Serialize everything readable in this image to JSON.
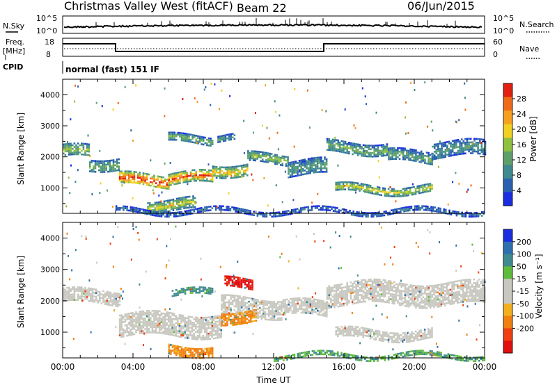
{
  "header": {
    "station": "Christmas Valley West (fitACF)",
    "beam": "Beam 22",
    "date": "06/Jun/2015"
  },
  "strip": {
    "nsky_label": "N.Sky",
    "nsearch_label": "N.Search",
    "noise_ticks": [
      "10^5",
      "10^0"
    ],
    "freq_label": "Freq.",
    "freq_unit": "[MHz]",
    "freq_ticks": [
      "18",
      "8"
    ],
    "nave_label": "Nave",
    "nave_ticks": [
      "60",
      "0"
    ],
    "cpid_label": "CPID",
    "cpid_text": "normal (fast) 151 IF"
  },
  "chart_data": [
    {
      "type": "heatmap",
      "title": "",
      "xlabel": "",
      "ylabel": "Slant Range [km]",
      "x_ticks": [
        "00:00",
        "04:00",
        "08:00",
        "12:00",
        "16:00",
        "20:00",
        "00:00"
      ],
      "xlim_hours": [
        0,
        24
      ],
      "y_ticks": [
        1000,
        2000,
        3000,
        4000
      ],
      "ylim_km": [
        180,
        4500
      ],
      "colorbar": {
        "label": "Power [dB]",
        "ticks": [
          "4",
          "8",
          "12",
          "16",
          "20",
          "24",
          "28"
        ],
        "colors": [
          "#1a2ee0",
          "#2b5fb0",
          "#3f8a8e",
          "#5ea06a",
          "#8fc040",
          "#f0d020",
          "#f5a020",
          "#ef6a18",
          "#e02010"
        ]
      },
      "bands": [
        {
          "t0": 0.0,
          "t1": 1.5,
          "y0": 1950,
          "y1": 2350,
          "v": 14
        },
        {
          "t0": 1.5,
          "t1": 3.2,
          "y0": 1600,
          "y1": 2000,
          "v": 12
        },
        {
          "t0": 3.2,
          "t1": 6.0,
          "y0": 1050,
          "y1": 1450,
          "v": 26
        },
        {
          "t0": 6.0,
          "t1": 8.5,
          "y0": 1150,
          "y1": 1500,
          "v": 24
        },
        {
          "t0": 8.5,
          "t1": 10.5,
          "y0": 1450,
          "y1": 1800,
          "v": 18
        },
        {
          "t0": 10.5,
          "t1": 12.8,
          "y0": 1800,
          "y1": 2100,
          "v": 14
        },
        {
          "t0": 12.8,
          "t1": 15.0,
          "y0": 1400,
          "y1": 1900,
          "v": 10
        },
        {
          "t0": 4.8,
          "t1": 7.5,
          "y0": 300,
          "y1": 650,
          "v": 16
        },
        {
          "t0": 6.0,
          "t1": 8.5,
          "y0": 2450,
          "y1": 2700,
          "v": 12
        },
        {
          "t0": 8.8,
          "t1": 9.8,
          "y0": 2500,
          "y1": 2700,
          "v": 10
        },
        {
          "t0": 15.0,
          "t1": 18.5,
          "y0": 2100,
          "y1": 2500,
          "v": 12
        },
        {
          "t0": 18.5,
          "t1": 21.0,
          "y0": 1800,
          "y1": 2200,
          "v": 11
        },
        {
          "t0": 21.0,
          "t1": 24.0,
          "y0": 2000,
          "y1": 2500,
          "v": 9
        },
        {
          "t0": 15.5,
          "t1": 21.0,
          "y0": 850,
          "y1": 1100,
          "v": 16
        },
        {
          "t0": 3.0,
          "t1": 24.0,
          "y0": 180,
          "y1": 330,
          "v": 6
        }
      ]
    },
    {
      "type": "heatmap",
      "title": "",
      "xlabel": "Time UT",
      "ylabel": "Slant Range [km]",
      "x_ticks": [
        "00:00",
        "04:00",
        "08:00",
        "12:00",
        "16:00",
        "20:00",
        "00:00"
      ],
      "xlim_hours": [
        0,
        24
      ],
      "y_ticks": [
        1000,
        2000,
        3000,
        4000
      ],
      "ylim_km": [
        180,
        4500
      ],
      "colorbar": {
        "label": "Velocity [m s⁻¹]",
        "ticks": [
          "200",
          "100",
          "50",
          "15",
          "-15",
          "-50",
          "-100",
          "-200"
        ],
        "colors": [
          "#1a2ee0",
          "#2e6fb0",
          "#3f8a8e",
          "#5fbb3a",
          "#c8c8c0",
          "#c8c8c0",
          "#f2b020",
          "#f08010",
          "#ee4010",
          "#e01010"
        ]
      },
      "bands": [
        {
          "t0": 0.0,
          "t1": 3.2,
          "y0": 1900,
          "y1": 2350,
          "v": 0
        },
        {
          "t0": 3.2,
          "t1": 9.0,
          "y0": 900,
          "y1": 1600,
          "v": 0
        },
        {
          "t0": 9.0,
          "t1": 12.5,
          "y0": 1500,
          "y1": 2100,
          "v": 0
        },
        {
          "t0": 12.5,
          "t1": 15.0,
          "y0": 1500,
          "y1": 2000,
          "v": 0
        },
        {
          "t0": 9.0,
          "t1": 11.0,
          "y0": 1300,
          "y1": 1700,
          "v": -40
        },
        {
          "t0": 6.0,
          "t1": 8.5,
          "y0": 300,
          "y1": 600,
          "v": -40
        },
        {
          "t0": 9.2,
          "t1": 10.8,
          "y0": 2400,
          "y1": 2700,
          "v": -160
        },
        {
          "t0": 6.2,
          "t1": 8.5,
          "y0": 2150,
          "y1": 2350,
          "v": 40
        },
        {
          "t0": 15.0,
          "t1": 24.0,
          "y0": 1900,
          "y1": 2600,
          "v": 0
        },
        {
          "t0": 15.5,
          "t1": 21.0,
          "y0": 800,
          "y1": 1100,
          "v": 0
        },
        {
          "t0": 12.0,
          "t1": 24.0,
          "y0": 180,
          "y1": 330,
          "v": 30
        }
      ]
    }
  ]
}
